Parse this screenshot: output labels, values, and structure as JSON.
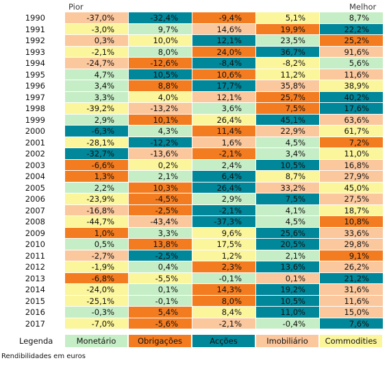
{
  "chart_data": {
    "type": "table",
    "header": {
      "left": "Pior",
      "right": "Melhor"
    },
    "years": [
      "1990",
      "1991",
      "1992",
      "1993",
      "1994",
      "1995",
      "1996",
      "1997",
      "1998",
      "1999",
      "2000",
      "2001",
      "2002",
      "2003",
      "2004",
      "2005",
      "2006",
      "2007",
      "2008",
      "2009",
      "2010",
      "2011",
      "2012",
      "2013",
      "2014",
      "2015",
      "2016",
      "2017"
    ],
    "categories": [
      "Monetário",
      "Obrigações",
      "Acções",
      "Imobiliário",
      "Commodities"
    ],
    "colors": {
      "Monetário": "#c6eec6",
      "Obrigações": "#f47c20",
      "Acções": "#00879a",
      "Imobiliário": "#fbc79d",
      "Commodities": "#fbf59b"
    },
    "rows": [
      {
        "values": [
          "-37,0%",
          "-32,4%",
          "-9,4%",
          "5,1%",
          "8,7%"
        ],
        "cats": [
          "Imobiliário",
          "Acções",
          "Obrigações",
          "Commodities",
          "Monetário"
        ]
      },
      {
        "values": [
          "-3,0%",
          "9,7%",
          "14,6%",
          "19,9%",
          "22,2%"
        ],
        "cats": [
          "Commodities",
          "Monetário",
          "Imobiliário",
          "Obrigações",
          "Acções"
        ]
      },
      {
        "values": [
          "0,3%",
          "10,0%",
          "12,1%",
          "23,5%",
          "25,2%"
        ],
        "cats": [
          "Imobiliário",
          "Commodities",
          "Acções",
          "Monetário",
          "Obrigações"
        ]
      },
      {
        "values": [
          "-2,1%",
          "8,0%",
          "24,0%",
          "36,7%",
          "91,6%"
        ],
        "cats": [
          "Commodities",
          "Monetário",
          "Obrigações",
          "Acções",
          "Imobiliário"
        ]
      },
      {
        "values": [
          "-24,7%",
          "-12,6%",
          "-8,4%",
          "-8,2%",
          "5,6%"
        ],
        "cats": [
          "Imobiliário",
          "Obrigações",
          "Acções",
          "Commodities",
          "Monetário"
        ]
      },
      {
        "values": [
          "4,7%",
          "10,5%",
          "10,6%",
          "11,2%",
          "11,6%"
        ],
        "cats": [
          "Monetário",
          "Acções",
          "Obrigações",
          "Commodities",
          "Imobiliário"
        ]
      },
      {
        "values": [
          "3,4%",
          "8,8%",
          "17,7%",
          "35,8%",
          "38,9%"
        ],
        "cats": [
          "Monetário",
          "Obrigações",
          "Acções",
          "Imobiliário",
          "Commodities"
        ]
      },
      {
        "values": [
          "3,3%",
          "4,0%",
          "12,1%",
          "25,7%",
          "40,2%"
        ],
        "cats": [
          "Monetário",
          "Commodities",
          "Imobiliário",
          "Obrigações",
          "Acções"
        ]
      },
      {
        "values": [
          "-39,2%",
          "-13,2%",
          "3,6%",
          "7,5%",
          "17,6%"
        ],
        "cats": [
          "Commodities",
          "Imobiliário",
          "Monetário",
          "Obrigações",
          "Acções"
        ]
      },
      {
        "values": [
          "2,9%",
          "10,1%",
          "26,4%",
          "45,1%",
          "63,6%"
        ],
        "cats": [
          "Monetário",
          "Obrigações",
          "Commodities",
          "Acções",
          "Imobiliário"
        ]
      },
      {
        "values": [
          "-6,3%",
          "4,3%",
          "11,4%",
          "22,9%",
          "61,7%"
        ],
        "cats": [
          "Acções",
          "Monetário",
          "Obrigações",
          "Imobiliário",
          "Commodities"
        ]
      },
      {
        "values": [
          "-28,1%",
          "-12,2%",
          "1,6%",
          "4,5%",
          "7,2%"
        ],
        "cats": [
          "Commodities",
          "Acções",
          "Imobiliário",
          "Monetário",
          "Obrigações"
        ]
      },
      {
        "values": [
          "-32,7%",
          "-13,6%",
          "-2,1%",
          "3,4%",
          "11,0%"
        ],
        "cats": [
          "Acções",
          "Imobiliário",
          "Obrigações",
          "Monetário",
          "Commodities"
        ]
      },
      {
        "values": [
          "-6,6%",
          "0,2%",
          "2,4%",
          "10,5%",
          "16,8%"
        ],
        "cats": [
          "Obrigações",
          "Commodities",
          "Monetário",
          "Acções",
          "Imobiliário"
        ]
      },
      {
        "values": [
          "1,3%",
          "2,1%",
          "6,4%",
          "8,7%",
          "27,9%"
        ],
        "cats": [
          "Obrigações",
          "Monetário",
          "Acções",
          "Commodities",
          "Imobiliário"
        ]
      },
      {
        "values": [
          "2,2%",
          "10,3%",
          "26,4%",
          "33,2%",
          "45,0%"
        ],
        "cats": [
          "Monetário",
          "Obrigações",
          "Acções",
          "Imobiliário",
          "Commodities"
        ]
      },
      {
        "values": [
          "-23,9%",
          "-4,5%",
          "2,9%",
          "7,5%",
          "27,5%"
        ],
        "cats": [
          "Commodities",
          "Obrigações",
          "Monetário",
          "Acções",
          "Imobiliário"
        ]
      },
      {
        "values": [
          "-16,8%",
          "-2,5%",
          "-2,1%",
          "4,1%",
          "18,7%"
        ],
        "cats": [
          "Imobiliário",
          "Obrigações",
          "Acções",
          "Monetário",
          "Commodities"
        ]
      },
      {
        "values": [
          "-44,7%",
          "-43,4%",
          "-37,3%",
          "4,5%",
          "10,8%"
        ],
        "cats": [
          "Commodities",
          "Imobiliário",
          "Acções",
          "Monetário",
          "Obrigações"
        ]
      },
      {
        "values": [
          "1,0%",
          "3,3%",
          "9,6%",
          "25,6%",
          "33,6%"
        ],
        "cats": [
          "Obrigações",
          "Monetário",
          "Commodities",
          "Acções",
          "Imobiliário"
        ]
      },
      {
        "values": [
          "0,5%",
          "13,8%",
          "17,5%",
          "20,5%",
          "29,8%"
        ],
        "cats": [
          "Monetário",
          "Obrigações",
          "Commodities",
          "Acções",
          "Imobiliário"
        ]
      },
      {
        "values": [
          "-2,7%",
          "-2,5%",
          "1,2%",
          "2,1%",
          "9,1%"
        ],
        "cats": [
          "Imobiliário",
          "Acções",
          "Commodities",
          "Monetário",
          "Obrigações"
        ]
      },
      {
        "values": [
          "-1,9%",
          "0,4%",
          "2,3%",
          "13,6%",
          "26,2%"
        ],
        "cats": [
          "Commodities",
          "Monetário",
          "Obrigações",
          "Acções",
          "Imobiliário"
        ]
      },
      {
        "values": [
          "-6,8%",
          "-5,5%",
          "-0,1%",
          "0,1%",
          "21,2%"
        ],
        "cats": [
          "Obrigações",
          "Commodities",
          "Monetário",
          "Imobiliário",
          "Acções"
        ]
      },
      {
        "values": [
          "-24,0%",
          "0,1%",
          "14,3%",
          "19,2%",
          "31,6%"
        ],
        "cats": [
          "Commodities",
          "Monetário",
          "Obrigações",
          "Acções",
          "Imobiliário"
        ]
      },
      {
        "values": [
          "-25,1%",
          "-0,1%",
          "8,0%",
          "10,5%",
          "11,6%"
        ],
        "cats": [
          "Commodities",
          "Monetário",
          "Obrigações",
          "Acções",
          "Imobiliário"
        ]
      },
      {
        "values": [
          "-0,3%",
          "5,4%",
          "8,4%",
          "11,0%",
          "15,0%"
        ],
        "cats": [
          "Monetário",
          "Obrigações",
          "Commodities",
          "Acções",
          "Imobiliário"
        ]
      },
      {
        "values": [
          "-7,0%",
          "-5,6%",
          "-2,1%",
          "-0,4%",
          "7,6%"
        ],
        "cats": [
          "Commodities",
          "Obrigações",
          "Imobiliário",
          "Monetário",
          "Acções"
        ]
      }
    ],
    "legend_label": "Legenda",
    "note": "Rendibilidades em euros"
  }
}
